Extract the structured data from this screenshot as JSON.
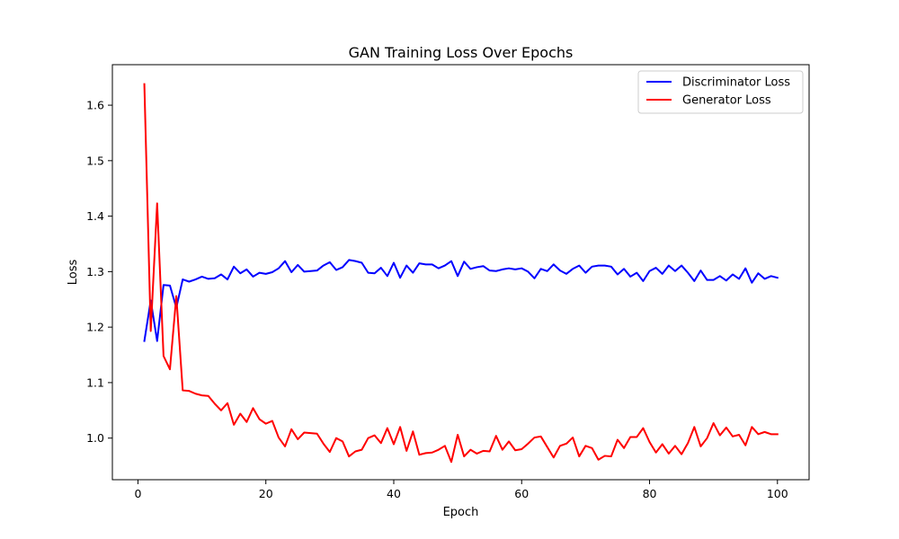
{
  "chart_data": {
    "type": "line",
    "title": "GAN Training Loss Over Epochs",
    "xlabel": "Epoch",
    "ylabel": "Loss",
    "xlim": [
      -4,
      104.95
    ],
    "ylim": [
      0.925,
      1.673
    ],
    "xticks": [
      0,
      20,
      40,
      60,
      80,
      100
    ],
    "xtick_labels": [
      "0",
      "20",
      "40",
      "60",
      "80",
      "100"
    ],
    "yticks": [
      1.0,
      1.1,
      1.2,
      1.3,
      1.4,
      1.5,
      1.6
    ],
    "ytick_labels": [
      "1.0",
      "1.1",
      "1.2",
      "1.3",
      "1.4",
      "1.5",
      "1.6"
    ],
    "grid": false,
    "legend_position": "top-right",
    "x": [
      1,
      2,
      3,
      4,
      5,
      6,
      7,
      8,
      9,
      10,
      11,
      12,
      13,
      14,
      15,
      16,
      17,
      18,
      19,
      20,
      21,
      22,
      23,
      24,
      25,
      26,
      27,
      28,
      29,
      30,
      31,
      32,
      33,
      34,
      35,
      36,
      37,
      38,
      39,
      40,
      41,
      42,
      43,
      44,
      45,
      46,
      47,
      48,
      49,
      50,
      51,
      52,
      53,
      54,
      55,
      56,
      57,
      58,
      59,
      60,
      61,
      62,
      63,
      64,
      65,
      66,
      67,
      68,
      69,
      70,
      71,
      72,
      73,
      74,
      75,
      76,
      77,
      78,
      79,
      80,
      81,
      82,
      83,
      84,
      85,
      86,
      87,
      88,
      89,
      90,
      91,
      92,
      93,
      94,
      95,
      96,
      97,
      98,
      99,
      100
    ],
    "series": [
      {
        "name": "Discriminator Loss",
        "color": "#0000ff",
        "values": [
          1.175,
          1.248,
          1.175,
          1.276,
          1.275,
          1.235,
          1.286,
          1.282,
          1.286,
          1.291,
          1.287,
          1.288,
          1.295,
          1.286,
          1.309,
          1.297,
          1.304,
          1.291,
          1.298,
          1.296,
          1.299,
          1.306,
          1.319,
          1.299,
          1.312,
          1.3,
          1.301,
          1.302,
          1.311,
          1.317,
          1.303,
          1.308,
          1.321,
          1.319,
          1.316,
          1.298,
          1.297,
          1.307,
          1.292,
          1.316,
          1.289,
          1.311,
          1.298,
          1.315,
          1.313,
          1.313,
          1.306,
          1.311,
          1.319,
          1.292,
          1.318,
          1.305,
          1.308,
          1.31,
          1.302,
          1.301,
          1.304,
          1.306,
          1.304,
          1.306,
          1.3,
          1.288,
          1.305,
          1.301,
          1.313,
          1.302,
          1.296,
          1.305,
          1.311,
          1.298,
          1.309,
          1.311,
          1.311,
          1.309,
          1.295,
          1.305,
          1.291,
          1.298,
          1.283,
          1.301,
          1.307,
          1.296,
          1.311,
          1.301,
          1.311,
          1.298,
          1.283,
          1.302,
          1.285,
          1.285,
          1.292,
          1.284,
          1.295,
          1.287,
          1.306,
          1.28,
          1.297,
          1.287,
          1.292,
          1.289
        ]
      },
      {
        "name": "Generator Loss",
        "color": "#ff0000",
        "values": [
          1.638,
          1.193,
          1.423,
          1.148,
          1.124,
          1.256,
          1.086,
          1.085,
          1.08,
          1.077,
          1.076,
          1.062,
          1.05,
          1.063,
          1.024,
          1.044,
          1.029,
          1.054,
          1.034,
          1.026,
          1.031,
          1.001,
          0.985,
          1.016,
          0.998,
          1.01,
          1.009,
          1.008,
          0.99,
          0.975,
          1.0,
          0.994,
          0.967,
          0.976,
          0.979,
          1.0,
          1.005,
          0.991,
          1.018,
          0.989,
          1.02,
          0.977,
          1.012,
          0.97,
          0.973,
          0.974,
          0.979,
          0.986,
          0.957,
          1.006,
          0.967,
          0.979,
          0.972,
          0.977,
          0.976,
          1.004,
          0.979,
          0.994,
          0.978,
          0.98,
          0.99,
          1.001,
          1.003,
          0.984,
          0.965,
          0.986,
          0.99,
          1.001,
          0.967,
          0.986,
          0.982,
          0.961,
          0.968,
          0.967,
          0.997,
          0.982,
          1.002,
          1.002,
          1.018,
          0.993,
          0.974,
          0.989,
          0.972,
          0.986,
          0.971,
          0.991,
          1.02,
          0.985,
          1.0,
          1.027,
          1.005,
          1.019,
          1.003,
          1.006,
          0.987,
          1.02,
          1.007,
          1.011,
          1.007,
          1.007
        ]
      }
    ]
  }
}
